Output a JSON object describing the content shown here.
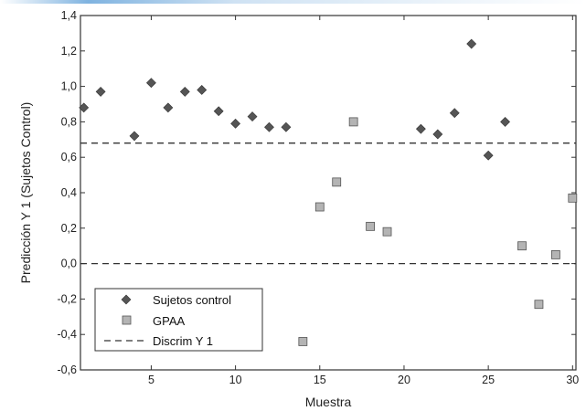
{
  "chart_data": {
    "type": "scatter",
    "xlabel": "Muestra",
    "ylabel": "Predicción Y 1 (Sujetos Control)",
    "xlim": [
      0.8,
      30.2
    ],
    "ylim": [
      -0.6,
      1.4
    ],
    "x_ticks": [
      5,
      10,
      15,
      20,
      25,
      30
    ],
    "x_tick_labels": [
      "5",
      "10",
      "15",
      "20",
      "25",
      "30"
    ],
    "y_ticks": [
      -0.6,
      -0.4,
      -0.2,
      0.0,
      0.2,
      0.4,
      0.6,
      0.8,
      1.0,
      1.2,
      1.4
    ],
    "y_tick_labels": [
      "-0,6",
      "-0,4",
      "-0,2",
      "0,0",
      "0,2",
      "0,4",
      "0,6",
      "0,8",
      "1,0",
      "1,2",
      "1,4"
    ],
    "grid": false,
    "legend_position": "bottom-left",
    "series": [
      {
        "name": "Sujetos control",
        "marker": "diamond",
        "color": "#555555",
        "points": [
          [
            1,
            0.88
          ],
          [
            2,
            0.97
          ],
          [
            4,
            0.72
          ],
          [
            5,
            1.02
          ],
          [
            6,
            0.88
          ],
          [
            7,
            0.97
          ],
          [
            8,
            0.98
          ],
          [
            9,
            0.86
          ],
          [
            10,
            0.79
          ],
          [
            11,
            0.83
          ],
          [
            12,
            0.77
          ],
          [
            13,
            0.77
          ],
          [
            21,
            0.76
          ],
          [
            22,
            0.73
          ],
          [
            23,
            0.85
          ],
          [
            24,
            1.24
          ],
          [
            25,
            0.61
          ],
          [
            26,
            0.8
          ]
        ]
      },
      {
        "name": "GPAA",
        "marker": "square",
        "color": "#b4b4b4",
        "points": [
          [
            14,
            -0.44
          ],
          [
            15,
            0.32
          ],
          [
            16,
            0.46
          ],
          [
            17,
            0.8
          ],
          [
            18,
            0.21
          ],
          [
            19,
            0.18
          ],
          [
            27,
            0.1
          ],
          [
            28,
            -0.23
          ],
          [
            29,
            0.05
          ],
          [
            30,
            0.37
          ]
        ]
      }
    ],
    "reference_lines": {
      "name": "Discrim Y 1",
      "style": "dashed",
      "y_values": [
        0.68,
        0.0
      ]
    }
  }
}
